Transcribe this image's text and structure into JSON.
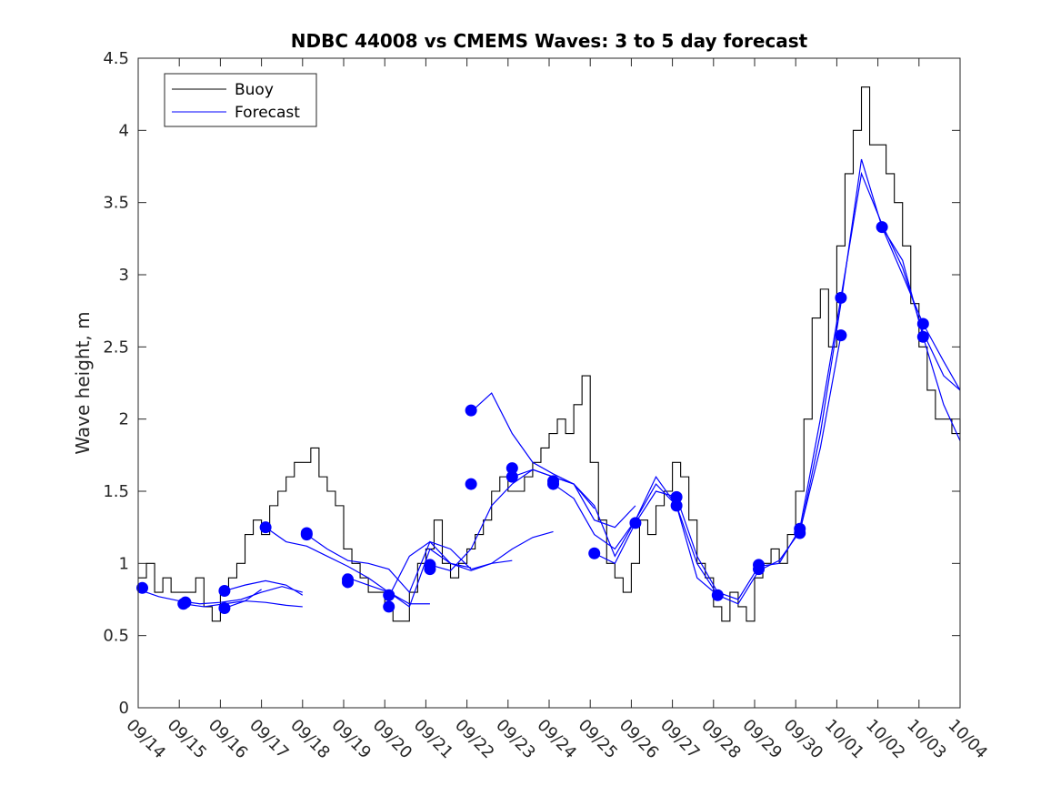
{
  "chart_data": {
    "type": "line",
    "title": "NDBC 44008 vs CMEMS Waves: 3 to 5 day forecast",
    "xlabel": "",
    "ylabel": "Wave height, m",
    "xlim": [
      0,
      20
    ],
    "ylim": [
      0,
      4.5
    ],
    "y_ticks": [
      "0",
      "0.5",
      "1",
      "1.5",
      "2",
      "2.5",
      "3",
      "3.5",
      "4",
      "4.5"
    ],
    "x_ticks": [
      "09/14",
      "09/15",
      "09/16",
      "09/17",
      "09/18",
      "09/19",
      "09/20",
      "09/21",
      "09/22",
      "09/23",
      "09/24",
      "09/25",
      "09/26",
      "09/27",
      "09/28",
      "09/29",
      "09/30",
      "10/01",
      "10/02",
      "10/03",
      "10/04"
    ],
    "legend": {
      "position": "top-left",
      "entries": [
        {
          "label": "Buoy",
          "color": "#000000"
        },
        {
          "label": "Forecast",
          "color": "#0000ff"
        }
      ]
    },
    "colors": {
      "buoy": "#000000",
      "forecast": "#0000ff",
      "axis": "#262626"
    },
    "buoy": {
      "name": "Buoy",
      "x": [
        0,
        0.2,
        0.4,
        0.6,
        0.8,
        1.0,
        1.2,
        1.4,
        1.6,
        1.8,
        2.0,
        2.2,
        2.4,
        2.6,
        2.8,
        3.0,
        3.2,
        3.4,
        3.6,
        3.8,
        4.0,
        4.2,
        4.4,
        4.6,
        4.8,
        5.0,
        5.2,
        5.4,
        5.6,
        5.8,
        6.0,
        6.2,
        6.4,
        6.6,
        6.8,
        7.0,
        7.2,
        7.4,
        7.6,
        7.8,
        8.0,
        8.2,
        8.4,
        8.6,
        8.8,
        9.0,
        9.2,
        9.4,
        9.6,
        9.8,
        10.0,
        10.2,
        10.4,
        10.6,
        10.8,
        11.0,
        11.2,
        11.4,
        11.6,
        11.8,
        12.0,
        12.2,
        12.4,
        12.6,
        12.8,
        13.0,
        13.2,
        13.4,
        13.6,
        13.8,
        14.0,
        14.2,
        14.4,
        14.6,
        14.8,
        15.0,
        15.2,
        15.4,
        15.6,
        15.8,
        16.0,
        16.2,
        16.4,
        16.6,
        16.8,
        17.0,
        17.2,
        17.4,
        17.6,
        17.8,
        18.0,
        18.2,
        18.4,
        18.6,
        18.8,
        19.0,
        19.2,
        19.4,
        19.6,
        19.8,
        20.0
      ],
      "values": [
        0.9,
        1.0,
        0.8,
        0.9,
        0.8,
        0.8,
        0.8,
        0.9,
        0.7,
        0.6,
        0.8,
        0.9,
        1.0,
        1.2,
        1.3,
        1.2,
        1.4,
        1.5,
        1.6,
        1.7,
        1.7,
        1.8,
        1.6,
        1.5,
        1.4,
        1.1,
        1.0,
        0.9,
        0.8,
        0.8,
        0.7,
        0.6,
        0.6,
        0.8,
        1.0,
        1.1,
        1.3,
        1.0,
        0.9,
        1.0,
        1.1,
        1.2,
        1.3,
        1.5,
        1.6,
        1.5,
        1.5,
        1.6,
        1.7,
        1.8,
        1.9,
        2.0,
        1.9,
        2.1,
        2.3,
        1.7,
        1.3,
        1.0,
        0.9,
        0.8,
        1.0,
        1.3,
        1.2,
        1.4,
        1.5,
        1.7,
        1.6,
        1.3,
        1.0,
        0.9,
        0.7,
        0.6,
        0.8,
        0.7,
        0.6,
        0.9,
        1.0,
        1.1,
        1.0,
        1.2,
        1.5,
        2.0,
        2.7,
        2.9,
        2.5,
        3.2,
        3.7,
        4.0,
        4.3,
        3.9,
        3.9,
        3.7,
        3.5,
        3.2,
        2.8,
        2.5,
        2.2,
        2.0,
        2.0,
        1.9,
        2.0
      ]
    },
    "forecast_series": [
      {
        "name": "Forecast",
        "x": [
          0.0,
          0.5,
          1.0,
          1.5,
          2.0,
          2.5,
          3.0,
          3.5,
          4.0
        ],
        "values": [
          0.82,
          0.77,
          0.74,
          0.72,
          0.73,
          0.75,
          0.8,
          0.84,
          0.8
        ]
      },
      {
        "name": "Forecast",
        "x": [
          1.1,
          1.6,
          2.1,
          2.6,
          3.1,
          3.6,
          4.0
        ],
        "values": [
          0.72,
          0.7,
          0.72,
          0.74,
          0.73,
          0.71,
          0.7
        ]
      },
      {
        "name": "Forecast",
        "x": [
          2.1,
          2.6,
          3.1,
          3.6,
          4.0
        ],
        "values": [
          0.81,
          0.85,
          0.88,
          0.85,
          0.78
        ]
      },
      {
        "name": "Forecast",
        "x": [
          2.1,
          2.6,
          3.0
        ],
        "values": [
          0.69,
          0.74,
          0.82
        ]
      },
      {
        "name": "Forecast",
        "x": [
          3.1,
          3.6,
          4.1,
          4.6,
          5.1,
          5.6,
          6.1,
          6.6,
          7.1
        ],
        "values": [
          1.25,
          1.15,
          1.12,
          1.05,
          0.98,
          0.9,
          0.8,
          0.72,
          0.72
        ]
      },
      {
        "name": "Forecast",
        "x": [
          4.1,
          4.6,
          5.1,
          5.6,
          6.1,
          6.6,
          7.1,
          7.6,
          8.1
        ],
        "values": [
          1.2,
          1.1,
          1.02,
          1.0,
          0.96,
          0.8,
          1.15,
          1.0,
          0.97
        ]
      },
      {
        "name": "Forecast",
        "x": [
          5.1,
          5.6,
          6.1,
          6.6,
          7.1,
          7.6,
          8.1,
          8.6,
          9.1
        ],
        "values": [
          0.9,
          0.85,
          0.8,
          0.7,
          1.1,
          1.0,
          0.95,
          1.0,
          1.02
        ]
      },
      {
        "name": "Forecast",
        "x": [
          6.1,
          6.6,
          7.1,
          7.6,
          8.1,
          8.6,
          9.1,
          9.6,
          10.1
        ],
        "values": [
          0.77,
          1.05,
          1.15,
          1.1,
          0.96,
          1.0,
          1.1,
          1.18,
          1.22
        ]
      },
      {
        "name": "Forecast",
        "x": [
          7.1,
          7.6,
          8.1,
          8.6,
          9.1,
          9.6,
          10.1,
          10.6,
          11.1
        ],
        "values": [
          0.99,
          0.95,
          1.1,
          1.4,
          1.55,
          1.65,
          1.6,
          1.55,
          1.38
        ]
      },
      {
        "name": "Forecast",
        "x": [
          8.1,
          8.6,
          9.1,
          9.6,
          10.1,
          10.6,
          11.1,
          11.6,
          12.1
        ],
        "values": [
          2.05,
          2.18,
          1.9,
          1.7,
          1.62,
          1.55,
          1.3,
          1.25,
          1.4
        ]
      },
      {
        "name": "Forecast",
        "x": [
          9.1,
          9.6,
          10.1,
          10.6,
          11.1,
          11.6,
          12.1,
          12.6,
          13.1
        ],
        "values": [
          1.6,
          1.65,
          1.6,
          1.55,
          1.4,
          1.05,
          1.3,
          1.55,
          1.4
        ]
      },
      {
        "name": "Forecast",
        "x": [
          10.1,
          10.6,
          11.1,
          11.6,
          12.1,
          12.6,
          13.1,
          13.6,
          14.1
        ],
        "values": [
          1.55,
          1.45,
          1.2,
          1.1,
          1.3,
          1.6,
          1.4,
          0.9,
          0.78
        ]
      },
      {
        "name": "Forecast",
        "x": [
          11.1,
          11.6,
          12.1,
          12.6,
          13.1,
          13.6,
          14.1,
          14.6,
          15.1
        ],
        "values": [
          1.07,
          1.0,
          1.28,
          1.5,
          1.46,
          1.05,
          0.8,
          0.75,
          0.98
        ]
      },
      {
        "name": "Forecast",
        "x": [
          13.1,
          13.6,
          14.1,
          14.6,
          15.1,
          15.6,
          16.1,
          16.6,
          17.1
        ],
        "values": [
          1.4,
          1.0,
          0.78,
          0.72,
          0.95,
          1.02,
          1.22,
          1.8,
          2.58
        ]
      },
      {
        "name": "Forecast",
        "x": [
          15.1,
          15.6,
          16.1,
          16.6,
          17.1,
          17.6,
          18.1,
          18.6,
          19.1,
          19.6,
          20.0
        ],
        "values": [
          0.98,
          1.0,
          1.24,
          2.0,
          2.84,
          3.7,
          3.35,
          3.05,
          2.6,
          2.3,
          2.2
        ]
      },
      {
        "name": "Forecast",
        "x": [
          16.1,
          16.6,
          17.1,
          17.6,
          18.1,
          18.6,
          19.1,
          19.6,
          20.0
        ],
        "values": [
          1.21,
          1.9,
          2.8,
          3.8,
          3.33,
          3.1,
          2.57,
          2.1,
          1.85
        ]
      },
      {
        "name": "Forecast",
        "x": [
          18.1,
          18.6,
          19.1,
          19.6,
          20.0
        ],
        "values": [
          3.33,
          3.0,
          2.66,
          2.4,
          2.2
        ]
      }
    ],
    "forecast_markers": {
      "x": [
        0.1,
        1.1,
        1.15,
        2.1,
        2.1,
        3.1,
        4.1,
        4.1,
        5.1,
        5.1,
        6.1,
        6.1,
        7.1,
        7.1,
        8.1,
        8.1,
        9.1,
        9.1,
        10.1,
        10.1,
        11.1,
        12.1,
        13.1,
        13.1,
        14.1,
        15.1,
        15.1,
        16.1,
        16.1,
        17.1,
        17.1,
        18.1,
        19.1,
        19.1
      ],
      "values": [
        0.83,
        0.72,
        0.73,
        0.81,
        0.69,
        1.25,
        1.2,
        1.21,
        0.89,
        0.87,
        0.78,
        0.7,
        0.99,
        0.96,
        2.06,
        1.55,
        1.6,
        1.66,
        1.57,
        1.55,
        1.07,
        1.28,
        1.46,
        1.4,
        0.78,
        0.99,
        0.96,
        1.21,
        1.24,
        2.84,
        2.58,
        3.33,
        2.66,
        2.57
      ]
    }
  }
}
